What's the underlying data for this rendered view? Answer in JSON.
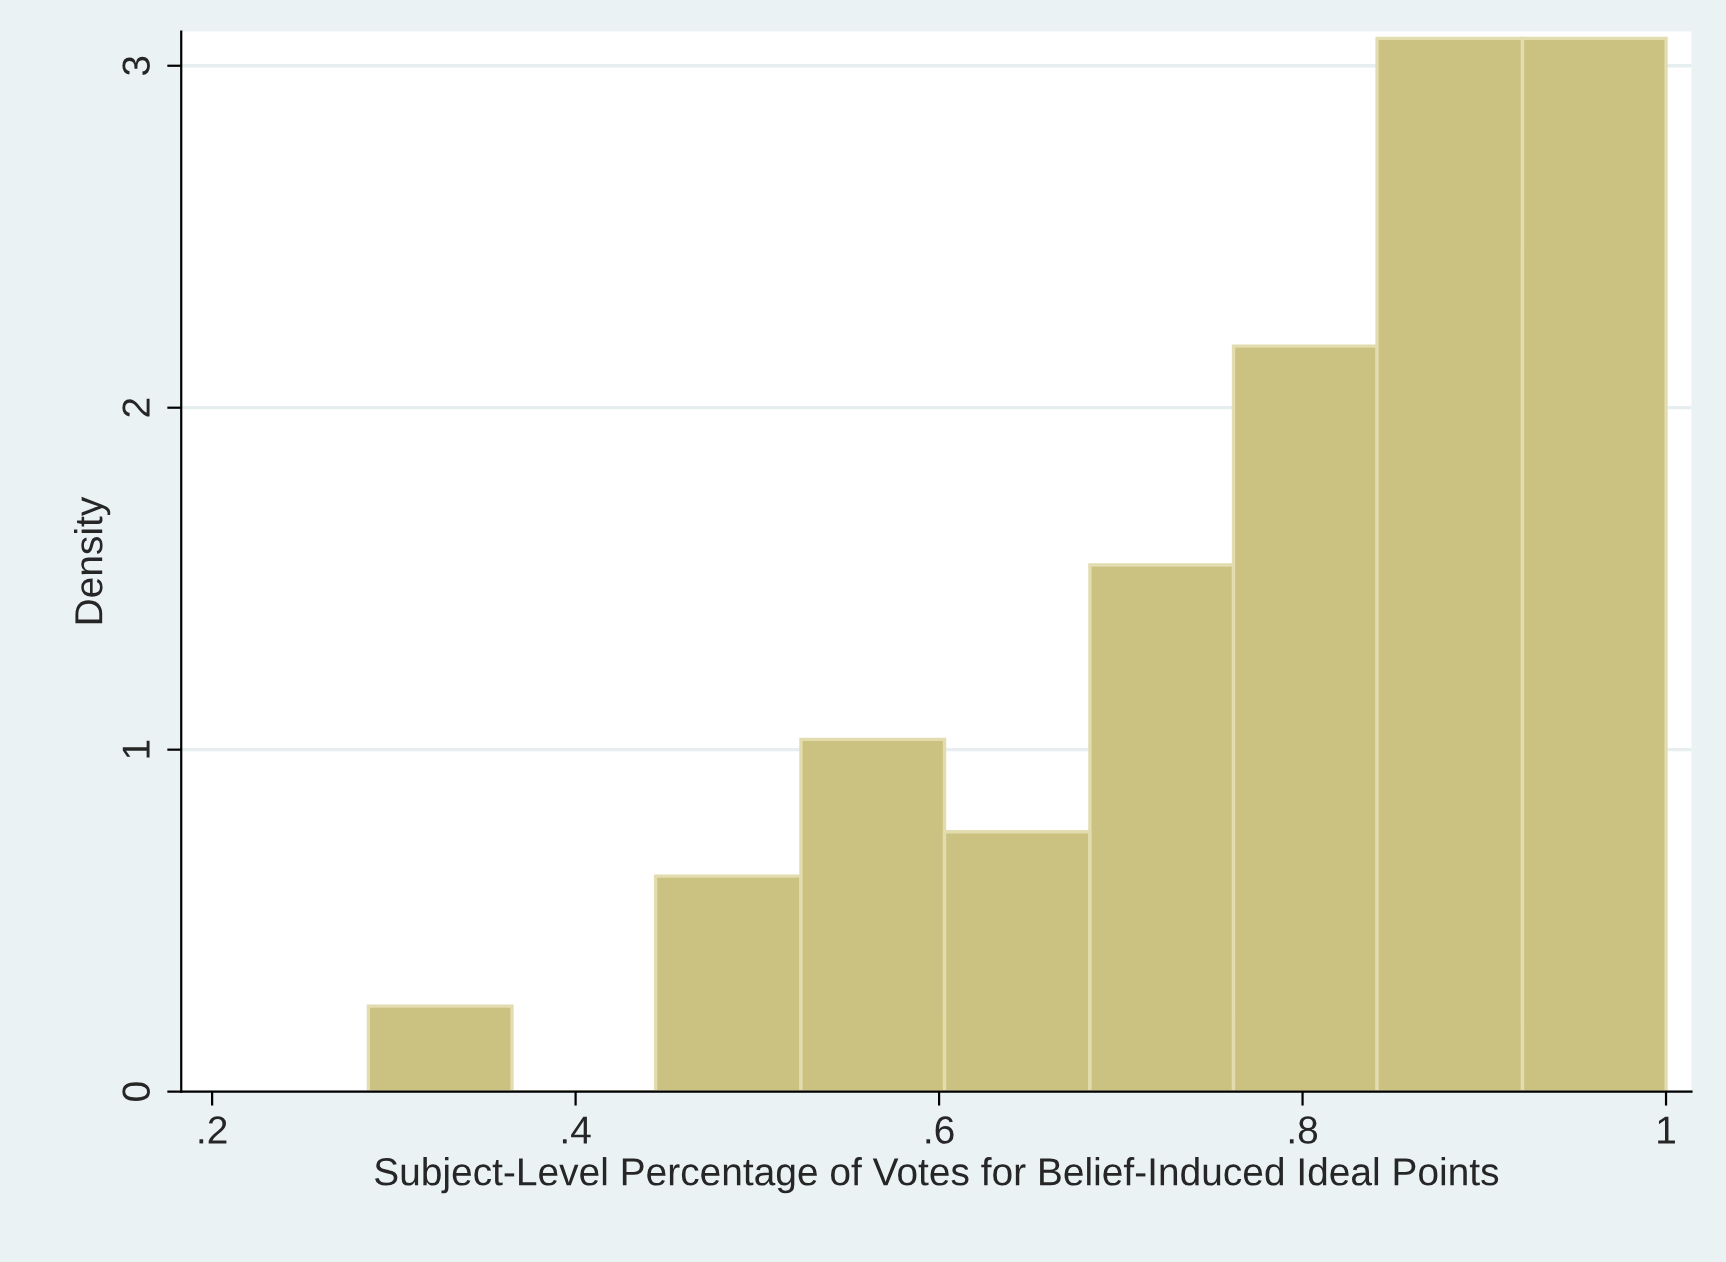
{
  "chart_data": {
    "type": "histogram",
    "xlabel": "Subject-Level Percentage of Votes for Belief-Induced Ideal Points",
    "ylabel": "Density",
    "bins": [
      0.286,
      0.365,
      0.444,
      0.524,
      0.603,
      0.683,
      0.762,
      0.841,
      0.921,
      1.0
    ],
    "values": [
      0.25,
      0,
      0.63,
      1.03,
      0.76,
      1.54,
      2.18,
      3.08,
      3.08
    ],
    "color": "#cbc281",
    "xlim": [
      0.183,
      1.014
    ],
    "ylim": [
      0,
      3.1
    ],
    "xticks": [
      {
        "value": 0.2,
        "label": ".2"
      },
      {
        "value": 0.4,
        "label": ".4"
      },
      {
        "value": 0.6,
        "label": ".6"
      },
      {
        "value": 0.8,
        "label": ".8"
      },
      1
    ],
    "yticks": [
      0,
      1,
      2,
      3
    ],
    "grid": "y"
  }
}
